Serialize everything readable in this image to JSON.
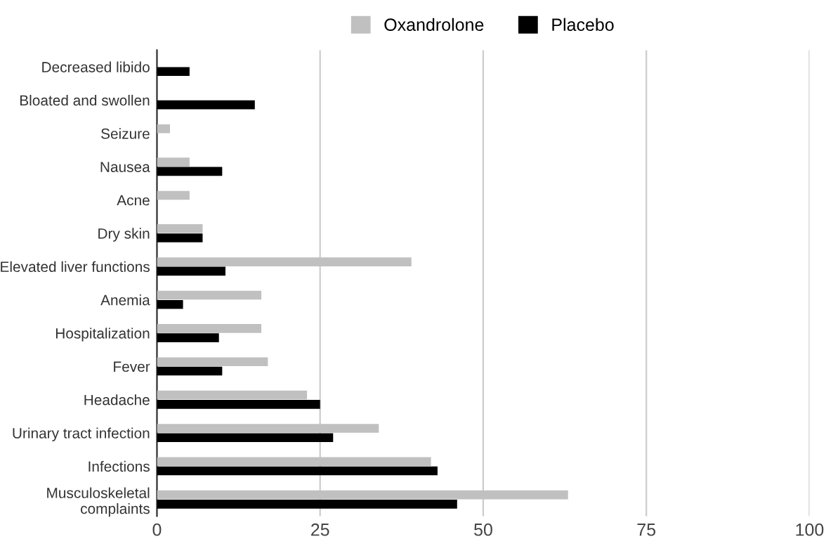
{
  "chart_data": {
    "type": "bar",
    "orientation": "horizontal",
    "categories": [
      "Decreased libido",
      "Bloated and swollen",
      "Seizure",
      "Nausea",
      "Acne",
      "Dry skin",
      "Elevated liver functions",
      "Anemia",
      "Hospitalization",
      "Fever",
      "Headache",
      "Urinary tract infection",
      "Infections",
      "Musculoskeletal\ncomplaints"
    ],
    "series": [
      {
        "name": "Oxandrolone",
        "color": "#c0c0c0",
        "values": [
          null,
          null,
          2,
          5,
          5,
          7,
          39,
          16,
          16,
          17,
          23,
          34,
          42,
          63
        ]
      },
      {
        "name": "Placebo",
        "color": "#000000",
        "values": [
          5,
          15,
          null,
          10,
          null,
          7,
          10.5,
          4,
          9.5,
          10,
          25,
          27,
          43,
          46
        ]
      }
    ],
    "xlim": [
      0,
      100
    ],
    "xticks": [
      0,
      25,
      50,
      75,
      100
    ],
    "grid": "x",
    "legend": "top"
  }
}
